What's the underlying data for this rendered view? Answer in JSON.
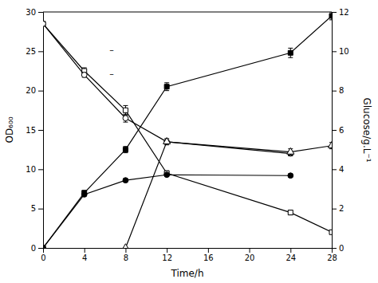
{
  "chart_data": {
    "type": "line",
    "xlabel": "Time/h",
    "ylabel": "OD₆₀₀",
    "y2label": "Glucose/g.L⁻¹",
    "xlim": [
      0,
      28
    ],
    "ylim": [
      0,
      30
    ],
    "y2lim": [
      0,
      12
    ],
    "xticks": [
      0,
      4,
      8,
      12,
      16,
      20,
      24,
      28
    ],
    "yticks": [
      0,
      5,
      10,
      15,
      20,
      25,
      30
    ],
    "y2ticks": [
      0,
      2,
      4,
      6,
      8,
      10,
      12
    ],
    "annotations": [
      "–",
      "–"
    ],
    "series": [
      {
        "x": [
          0,
          4,
          8,
          12,
          24,
          28
        ],
        "values": [
          28.5,
          22.5,
          17.5,
          9.5,
          4.5,
          2.0
        ],
        "errors": [
          0.0,
          0.4,
          0.6,
          0.3,
          0.3,
          0.2
        ],
        "marker": "square-open",
        "line_style": "solid",
        "color": "#000000"
      },
      {
        "x": [
          0,
          4,
          8,
          12,
          24
        ],
        "values": [
          28.5,
          22.0,
          16.5,
          13.5,
          12.0
        ],
        "errors": [
          0.0,
          0.3,
          0.5,
          0.4,
          0.3
        ],
        "marker": "circle-open",
        "line_style": "solid",
        "color": "#000000"
      },
      {
        "x": [
          0,
          4,
          8,
          12,
          24
        ],
        "values": [
          0.0,
          6.8,
          8.6,
          9.3,
          9.2
        ],
        "errors": [
          0.0,
          0.2,
          0.2,
          0.2,
          0.2
        ],
        "marker": "circle",
        "line_style": "solid",
        "color": "#000000"
      },
      {
        "x": [
          0,
          4,
          8,
          12,
          24,
          28
        ],
        "values": [
          0.0,
          7.0,
          12.5,
          20.5,
          24.8,
          29.5
        ],
        "errors": [
          0.0,
          0.3,
          0.4,
          0.5,
          0.6,
          0.5
        ],
        "marker": "square",
        "line_style": "solid",
        "color": "#000000"
      },
      {
        "x": [
          8,
          12,
          24,
          28
        ],
        "values": [
          0.0,
          13.5,
          12.2,
          13.0
        ],
        "errors": [
          0.0,
          0.0,
          0.4,
          0.4
        ],
        "marker": "triangle-open",
        "line_style": "solid",
        "color": "#000000"
      }
    ]
  }
}
